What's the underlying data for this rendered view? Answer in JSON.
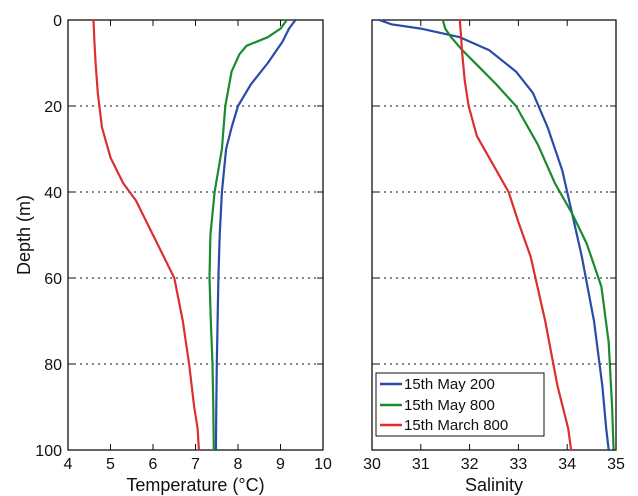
{
  "chart_data": [
    {
      "type": "line",
      "xlabel": "Temperature (°C)",
      "ylabel": "Depth (m)",
      "xlim": [
        4,
        10
      ],
      "ylim": [
        100,
        0
      ],
      "y_reversed": true,
      "xticks": [
        "4",
        "5",
        "6",
        "7",
        "8",
        "9",
        "10"
      ],
      "yticks": [
        "0",
        "20",
        "40",
        "60",
        "80",
        "100"
      ],
      "grid": "horizontal dotted",
      "series": [
        {
          "name": "15th May 200",
          "color": "#2b4ba8",
          "x": [
            9.35,
            9.2,
            9.05,
            8.7,
            8.3,
            8.0,
            7.85,
            7.72,
            7.62,
            7.57,
            7.54,
            7.52,
            7.5,
            7.49,
            7.48
          ],
          "y": [
            0,
            2,
            5,
            10,
            15,
            20,
            25,
            30,
            40,
            50,
            60,
            70,
            80,
            90,
            100
          ]
        },
        {
          "name": "15th May 800",
          "color": "#1a8a2e",
          "x": [
            9.15,
            9.0,
            8.7,
            8.2,
            8.03,
            7.85,
            7.7,
            7.62,
            7.45,
            7.35,
            7.33,
            7.36,
            7.4,
            7.42,
            7.43
          ],
          "y": [
            0,
            2,
            4,
            6,
            8,
            12,
            20,
            30,
            40,
            50,
            60,
            70,
            80,
            90,
            100
          ]
        },
        {
          "name": "15th March 800",
          "color": "#dc2f2f",
          "x": [
            4.6,
            4.62,
            4.65,
            4.7,
            4.8,
            5.0,
            5.3,
            5.6,
            5.85,
            6.1,
            6.5,
            6.7,
            6.85,
            6.97,
            7.05,
            7.08
          ],
          "y": [
            0,
            5,
            10,
            17,
            25,
            32,
            38,
            42,
            47,
            52,
            60,
            70,
            80,
            90,
            95,
            100
          ]
        }
      ]
    },
    {
      "type": "line",
      "xlabel": "Salinity",
      "xlim": [
        30,
        35
      ],
      "ylim": [
        100,
        0
      ],
      "y_reversed": true,
      "xticks": [
        "30",
        "31",
        "32",
        "33",
        "34",
        "35"
      ],
      "grid": "horizontal dotted",
      "legend": {
        "position": "bottom-left",
        "entries": [
          "15th May 200",
          "15th May 800",
          "15th March 800"
        ]
      },
      "series": [
        {
          "name": "15th May 200",
          "color": "#2b4ba8",
          "x": [
            30.15,
            30.4,
            31.0,
            31.8,
            32.4,
            32.95,
            33.3,
            33.6,
            33.9,
            34.1,
            34.3,
            34.55,
            34.72,
            34.8,
            34.85
          ],
          "y": [
            0,
            1,
            2,
            4,
            7,
            12,
            17,
            25,
            35,
            45,
            55,
            70,
            85,
            95,
            100
          ]
        },
        {
          "name": "15th May 800",
          "color": "#1a8a2e",
          "x": [
            31.45,
            31.5,
            31.62,
            31.85,
            32.2,
            32.55,
            32.95,
            33.4,
            33.75,
            34.1,
            34.4,
            34.7,
            34.85,
            34.92,
            34.95
          ],
          "y": [
            0,
            2,
            4,
            7,
            11,
            15,
            20,
            29,
            38,
            45,
            52,
            62,
            75,
            90,
            100
          ]
        },
        {
          "name": "15th March 800",
          "color": "#dc2f2f",
          "x": [
            31.8,
            31.82,
            31.85,
            31.9,
            31.98,
            32.15,
            32.5,
            32.8,
            33.0,
            33.25,
            33.55,
            33.8,
            34.02,
            34.08
          ],
          "y": [
            0,
            3,
            8,
            14,
            20,
            27,
            34,
            40,
            47,
            55,
            70,
            85,
            95,
            100
          ]
        }
      ]
    }
  ]
}
